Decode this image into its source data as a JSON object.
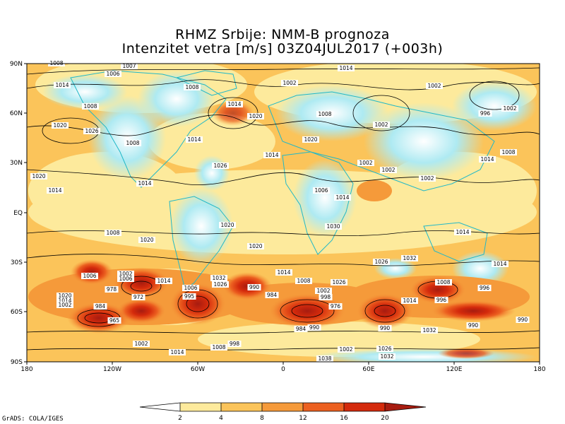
{
  "header": {
    "title_line1": "RHMZ Srbije: NMM-B prognoza",
    "title_line2": "Intenzitet vetra [m/s] 03Z04JUL2017 (+003h)"
  },
  "map": {
    "lat_labels": [
      "90N",
      "60N",
      "30N",
      "EQ",
      "30S",
      "60S",
      "90S"
    ],
    "lon_labels": [
      "180",
      "120W",
      "60W",
      "0",
      "60E",
      "120E",
      "180"
    ],
    "isobar_labels": [
      "1008",
      "1007",
      "1014",
      "1006",
      "1014",
      "1008",
      "1002",
      "1002",
      "1008",
      "1020",
      "1014",
      "1008",
      "996",
      "1002",
      "1026",
      "1014",
      "1020",
      "1002",
      "1008",
      "1014",
      "1020",
      "1008",
      "1002",
      "1014",
      "1026",
      "1002",
      "1002",
      "1006",
      "1020",
      "1014",
      "1014",
      "1008",
      "1014",
      "1014",
      "1020",
      "1030",
      "1020",
      "1014",
      "1020",
      "1026",
      "1032",
      "1032",
      "1026",
      "1014",
      "1006",
      "1014",
      "1008",
      "1026",
      "1008",
      "1002",
      "1002",
      "1006",
      "996",
      "990",
      "990",
      "984",
      "998",
      "976",
      "1014",
      "996",
      "1020",
      "1014",
      "1002",
      "984",
      "978",
      "972",
      "1006",
      "995",
      "965",
      "990",
      "1002",
      "1014",
      "1008",
      "998",
      "1002",
      "1032",
      "1026",
      "1032",
      "1038",
      "990",
      "990",
      "984"
    ]
  },
  "legend": {
    "ticks": [
      "2",
      "4",
      "8",
      "12",
      "16",
      "20"
    ],
    "colors": [
      "#ffffff",
      "#aeeaf2",
      "#fdea9c",
      "#fbc45a",
      "#f59a3a",
      "#ec6020",
      "#d42a0c",
      "#a71c10"
    ]
  },
  "footer": {
    "credit": "GrADS: COLA/IGES"
  }
}
